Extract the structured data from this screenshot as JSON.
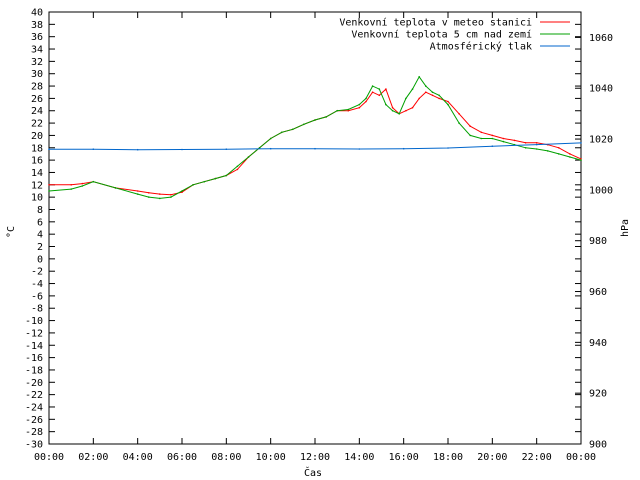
{
  "chart_data": {
    "type": "line",
    "xlabel": "Čas",
    "ylabel_left": "°C",
    "ylabel_right": "hPa",
    "x_ticks": [
      "00:00",
      "02:00",
      "04:00",
      "06:00",
      "08:00",
      "10:00",
      "12:00",
      "14:00",
      "16:00",
      "18:00",
      "20:00",
      "22:00",
      "00:00"
    ],
    "x_range_hours": [
      0,
      24
    ],
    "y_left_range": [
      -30,
      40
    ],
    "y_left_ticks": [
      40,
      38,
      36,
      34,
      32,
      30,
      28,
      26,
      24,
      22,
      20,
      18,
      16,
      14,
      12,
      10,
      8,
      6,
      4,
      2,
      0,
      -2,
      -4,
      -6,
      -8,
      -10,
      -12,
      -14,
      -16,
      -18,
      -20,
      -22,
      -24,
      -26,
      -28,
      -30
    ],
    "y_right_range": [
      900,
      1070
    ],
    "y_right_ticks": [
      1060,
      1040,
      1020,
      1000,
      980,
      960,
      940,
      920,
      900
    ],
    "legend_position": "top-right",
    "grid": false,
    "series": [
      {
        "name": "Venkovní teplota v meteo stanici",
        "color": "#ff0000",
        "axis": "left",
        "x": [
          0,
          1,
          1.5,
          2,
          3,
          4,
          4.5,
          5,
          5.5,
          6,
          6.5,
          7,
          7.5,
          8,
          8.5,
          9,
          9.5,
          10,
          10.5,
          11,
          11.5,
          12,
          12.5,
          13,
          13.5,
          14,
          14.3,
          14.6,
          14.9,
          15.2,
          15.5,
          15.8,
          16.1,
          16.4,
          16.7,
          17,
          17.3,
          17.6,
          18,
          18.5,
          19,
          19.5,
          20,
          20.5,
          21,
          21.5,
          22,
          22.5,
          23,
          23.5,
          24
        ],
        "y": [
          12,
          12,
          12.2,
          12.5,
          11.5,
          11,
          10.7,
          10.5,
          10.4,
          10.8,
          12,
          12.5,
          13,
          13.5,
          14.5,
          16.5,
          18,
          19.5,
          20.5,
          21,
          21.8,
          22.5,
          23,
          24,
          24,
          24.5,
          25.5,
          27,
          26.5,
          27.5,
          24.5,
          23.5,
          24,
          24.5,
          26,
          27,
          26.5,
          26,
          25.5,
          23.5,
          21.5,
          20.5,
          20,
          19.5,
          19.2,
          18.8,
          18.8,
          18.5,
          18,
          17,
          16.2
        ]
      },
      {
        "name": "Venkovní teplota 5 cm nad zemí",
        "color": "#00a000",
        "axis": "left",
        "x": [
          0,
          1,
          1.5,
          2,
          3,
          4,
          4.5,
          5,
          5.5,
          6,
          6.5,
          7,
          7.5,
          8,
          8.5,
          9,
          9.5,
          10,
          10.5,
          11,
          11.5,
          12,
          12.5,
          13,
          13.5,
          14,
          14.3,
          14.6,
          14.9,
          15.2,
          15.5,
          15.8,
          16.1,
          16.4,
          16.7,
          17,
          17.3,
          17.6,
          18,
          18.5,
          19,
          19.5,
          20,
          20.5,
          21,
          21.5,
          22,
          22.5,
          23,
          23.5,
          24
        ],
        "y": [
          11,
          11.3,
          11.8,
          12.5,
          11.5,
          10.5,
          10,
          9.8,
          10,
          11,
          12,
          12.5,
          13,
          13.5,
          15,
          16.5,
          18,
          19.5,
          20.5,
          21,
          21.8,
          22.5,
          23,
          24,
          24.2,
          25,
          26,
          28,
          27.5,
          25,
          24,
          23.5,
          26,
          27.5,
          29.5,
          28,
          27,
          26.5,
          25,
          22,
          20,
          19.5,
          19.5,
          19,
          18.5,
          18,
          17.8,
          17.5,
          17,
          16.5,
          16
        ]
      },
      {
        "name": "Atmosférický tlak",
        "color": "#0066cc",
        "axis": "right",
        "x": [
          0,
          2,
          4,
          6,
          8,
          10,
          12,
          14,
          16,
          18,
          20,
          22,
          24
        ],
        "y": [
          1016,
          1016,
          1015.8,
          1015.9,
          1016,
          1016.2,
          1016.2,
          1016.1,
          1016.2,
          1016.5,
          1017.2,
          1017.8,
          1018.5
        ]
      }
    ]
  }
}
